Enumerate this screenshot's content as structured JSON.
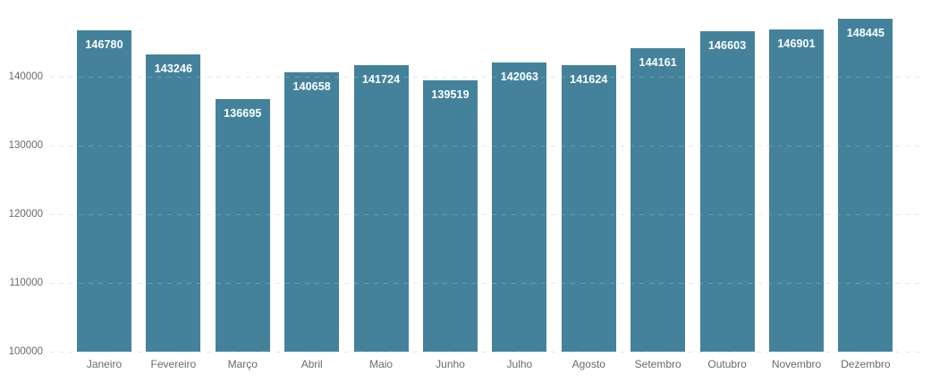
{
  "chart_data": {
    "type": "bar",
    "title": "",
    "xlabel": "",
    "ylabel": "",
    "categories": [
      "Janeiro",
      "Fevereiro",
      "Março",
      "Abril",
      "Maio",
      "Junho",
      "Julho",
      "Agosto",
      "Setembro",
      "Outubro",
      "Novembro",
      "Dezembro"
    ],
    "values": [
      146780,
      143246,
      136695,
      140658,
      141724,
      139519,
      142063,
      141624,
      144161,
      146603,
      146901,
      148445
    ],
    "value_labels": [
      "146780",
      "143246",
      "136695",
      "140658",
      "141724",
      "139519",
      "142063",
      "141624",
      "144161",
      "146603",
      "146901",
      "148445"
    ],
    "ylim": [
      100000,
      150000
    ],
    "yticks": [
      100000,
      110000,
      120000,
      130000,
      140000
    ],
    "ytick_labels": [
      "100000",
      "110000",
      "120000",
      "130000",
      "140000"
    ],
    "grid": "dashed-horizontal",
    "legend_position": "none",
    "colors": {
      "bar": "#44829b",
      "value_label": "#ffffff",
      "axis_text": "#6a6a6a",
      "gridline": "#e3e3e3",
      "background": "#ffffff"
    }
  }
}
